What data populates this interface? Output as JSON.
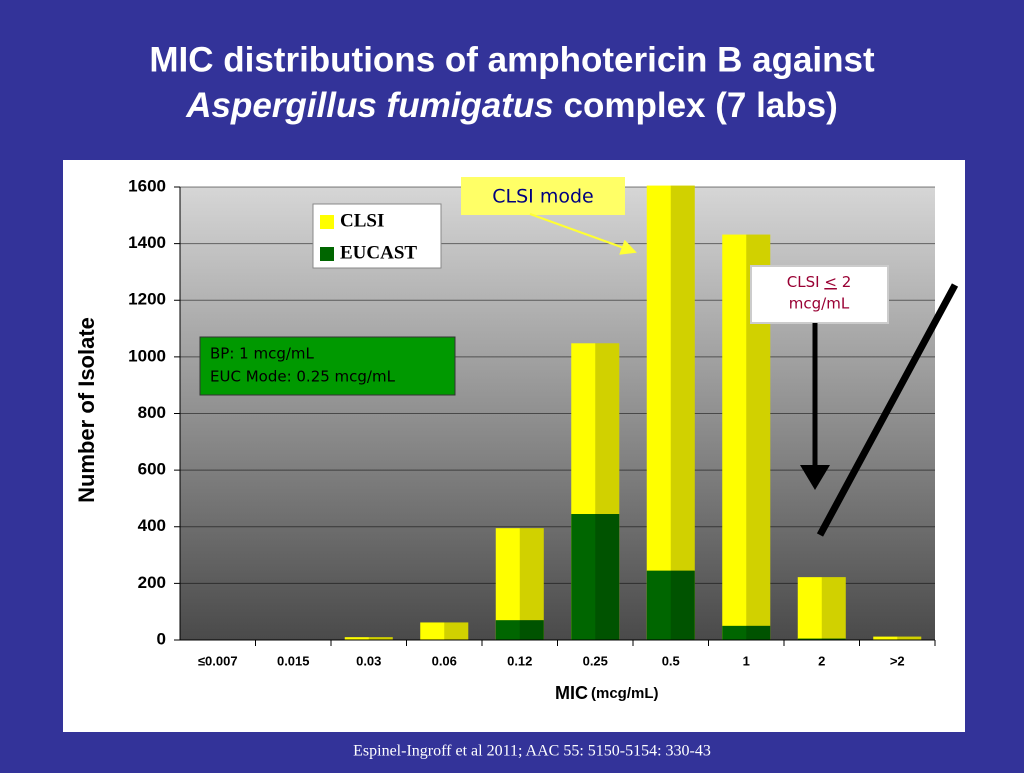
{
  "chart_data": {
    "type": "bar",
    "title_line1": "MIC distributions of amphotericin B against",
    "title_italic": "Aspergillus fumigatus",
    "title_rest": "complex (7 labs)",
    "y_label": "Number of Isolate",
    "x_label": "MIC",
    "x_label_unit": "(mcg/mL)",
    "categories": [
      "≤0.007",
      "0.015",
      "0.03",
      "0.06",
      "0.12",
      "0.25",
      "0.5",
      "1",
      "2",
      ">2"
    ],
    "series": [
      {
        "name": "CLSI",
        "color": "#ffff00",
        "values": [
          0,
          0,
          10,
          62,
          395,
          1048,
          1605,
          1432,
          222,
          12
        ]
      },
      {
        "name": "EUCAST",
        "color": "#006600",
        "values": [
          0,
          0,
          0,
          0,
          70,
          445,
          245,
          50,
          5,
          0
        ]
      }
    ],
    "ylim": [
      0,
      1600
    ],
    "yticks": [
      0,
      200,
      400,
      600,
      800,
      1000,
      1200,
      1400,
      1600
    ],
    "annotations": {
      "mode": "CLSI mode",
      "bp_line1": "BP: 1 mcg/mL",
      "bp_line2": "EUC Mode: 0.25 mcg/mL",
      "clsi_prefix": "CLSI",
      "clsi_symbol": "<",
      "clsi_value": "2",
      "clsi_unit": "mcg/mL"
    },
    "citation": "Espinel-Ingroff et al 2011; AAC 55: 5150-5154: 330-43"
  }
}
